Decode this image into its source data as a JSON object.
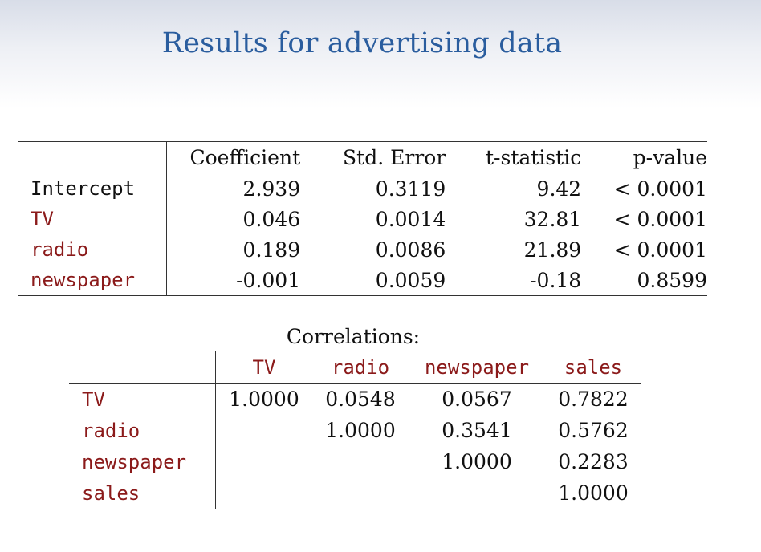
{
  "slide": {
    "title": "Results for advertising data"
  },
  "regression": {
    "columns": [
      "Coefficient",
      "Std. Error",
      "t-statistic",
      "p-value"
    ],
    "rows": [
      {
        "label": "Intercept",
        "coefficient": "2.939",
        "std_error": "0.3119",
        "t_statistic": "9.42",
        "p_value": "< 0.0001"
      },
      {
        "label": "TV",
        "coefficient": "0.046",
        "std_error": "0.0014",
        "t_statistic": "32.81",
        "p_value": "< 0.0001"
      },
      {
        "label": "radio",
        "coefficient": "0.189",
        "std_error": "0.0086",
        "t_statistic": "21.89",
        "p_value": "< 0.0001"
      },
      {
        "label": "newspaper",
        "coefficient": "-0.001",
        "std_error": "0.0059",
        "t_statistic": "-0.18",
        "p_value": "0.8599"
      }
    ]
  },
  "correlations": {
    "caption": "Correlations:",
    "columns": [
      "TV",
      "radio",
      "newspaper",
      "sales"
    ],
    "rows": [
      {
        "label": "TV",
        "values": [
          "1.0000",
          "0.0548",
          "0.0567",
          "0.7822"
        ]
      },
      {
        "label": "radio",
        "values": [
          "",
          "1.0000",
          "0.3541",
          "0.5762"
        ]
      },
      {
        "label": "newspaper",
        "values": [
          "",
          "",
          "1.0000",
          "0.2283"
        ]
      },
      {
        "label": "sales",
        "values": [
          "",
          "",
          "",
          "1.0000"
        ]
      }
    ]
  },
  "colors": {
    "title": "#2a5d9e",
    "variable_name": "#8b1a1a",
    "background_band": "#d8dde8"
  }
}
